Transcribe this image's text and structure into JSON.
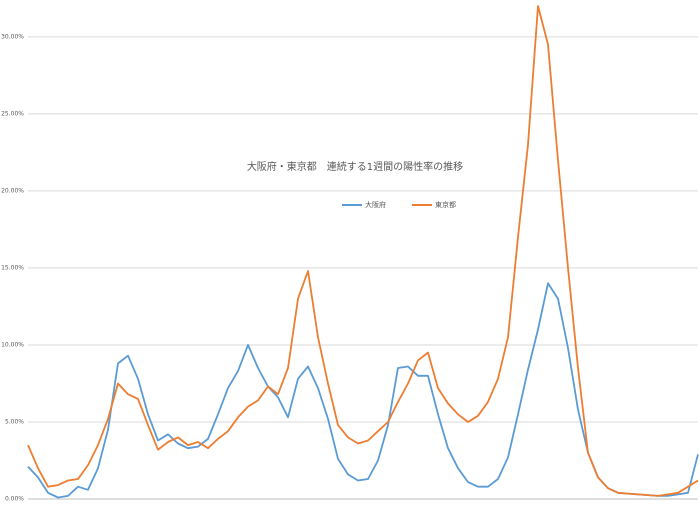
{
  "chart_data": {
    "type": "line",
    "title": "大阪府・東京都　連続する1週間の陽性率の推移",
    "ylim": [
      0,
      32
    ],
    "yticks": [
      {
        "value": 0,
        "label": "0.00%"
      },
      {
        "value": 5,
        "label": "5.00%"
      },
      {
        "value": 10,
        "label": "10.00%"
      },
      {
        "value": 15,
        "label": "15.00%"
      },
      {
        "value": 20,
        "label": "20.00%"
      },
      {
        "value": 25,
        "label": "25.00%"
      },
      {
        "value": 30,
        "label": "30.00%"
      }
    ],
    "grid": true,
    "legend": "top",
    "series": [
      {
        "name": "大阪府",
        "color": "#5b9bd5",
        "values": [
          2.1,
          1.4,
          0.4,
          0.1,
          0.2,
          0.8,
          0.6,
          2.0,
          4.5,
          8.8,
          9.3,
          7.8,
          5.5,
          3.8,
          4.2,
          3.6,
          3.3,
          3.4,
          3.9,
          5.5,
          7.2,
          8.3,
          10.0,
          8.5,
          7.3,
          6.6,
          5.3,
          7.8,
          8.6,
          7.2,
          5.2,
          2.6,
          1.6,
          1.2,
          1.3,
          2.5,
          4.8,
          8.5,
          8.6,
          8.0,
          8.0,
          5.5,
          3.3,
          2.0,
          1.1,
          0.8,
          0.8,
          1.3,
          2.7,
          5.5,
          8.4,
          11,
          14.0,
          13,
          9.8,
          5.8,
          3.0,
          1.4,
          0.7,
          0.4,
          0.35,
          0.3,
          0.25,
          0.2,
          0.2,
          0.3,
          0.4,
          2.9
        ]
      },
      {
        "name": "東京都",
        "color": "#ed7d31",
        "values": [
          3.5,
          2.0,
          0.8,
          0.9,
          1.2,
          1.3,
          2.2,
          3.5,
          5.2,
          7.5,
          6.8,
          6.5,
          4.8,
          3.2,
          3.7,
          4.0,
          3.5,
          3.7,
          3.3,
          3.9,
          4.4,
          5.3,
          6.0,
          6.4,
          7.3,
          6.8,
          8.5,
          13,
          14.8,
          10.5,
          7.5,
          4.8,
          4.0,
          3.6,
          3.8,
          4.4,
          5.0,
          6.3,
          7.5,
          9.0,
          9.5,
          7.2,
          6.2,
          5.5,
          5.0,
          5.4,
          6.3,
          7.8,
          10.5,
          17,
          23,
          32,
          29.5,
          22,
          15,
          8.5,
          3.0,
          1.4,
          0.7,
          0.4,
          0.35,
          0.3,
          0.25,
          0.2,
          0.3,
          0.4,
          0.8,
          1.2
        ]
      }
    ]
  }
}
